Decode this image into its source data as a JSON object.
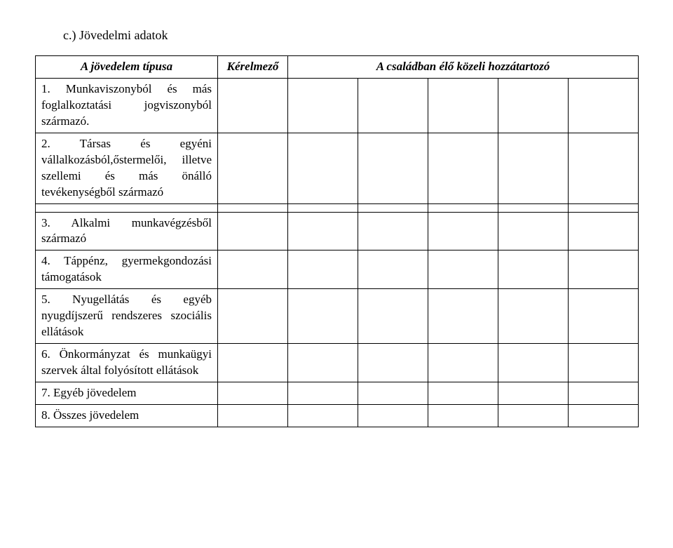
{
  "section_title": "c.) Jövedelmi adatok",
  "headers": {
    "type": "A jövedelem típusa",
    "applicant": "Kérelmező",
    "family": "A családban élő közeli hozzátartozó"
  },
  "rows_block1": [
    "1. Munkaviszonyból és más foglalkoztatási jogviszonyból származó.",
    "2. Társas és egyéni vállalkozásból,őstermelői, illetve szellemi és más önálló tevékenységből származó"
  ],
  "rows_block2": [
    "3. Alkalmi munkavégzésből származó",
    "4. Táppénz, gyermekgondozási támogatások",
    "5. Nyugellátás és egyéb nyugdíjszerű rendszeres szociális ellátások",
    "6. Önkormányzat és munkaügyi szervek által folyósított ellátások",
    "7. Egyéb jövedelem",
    "8. Összes jövedelem"
  ],
  "colors": {
    "text": "#000000",
    "background": "#ffffff",
    "border": "#000000"
  }
}
